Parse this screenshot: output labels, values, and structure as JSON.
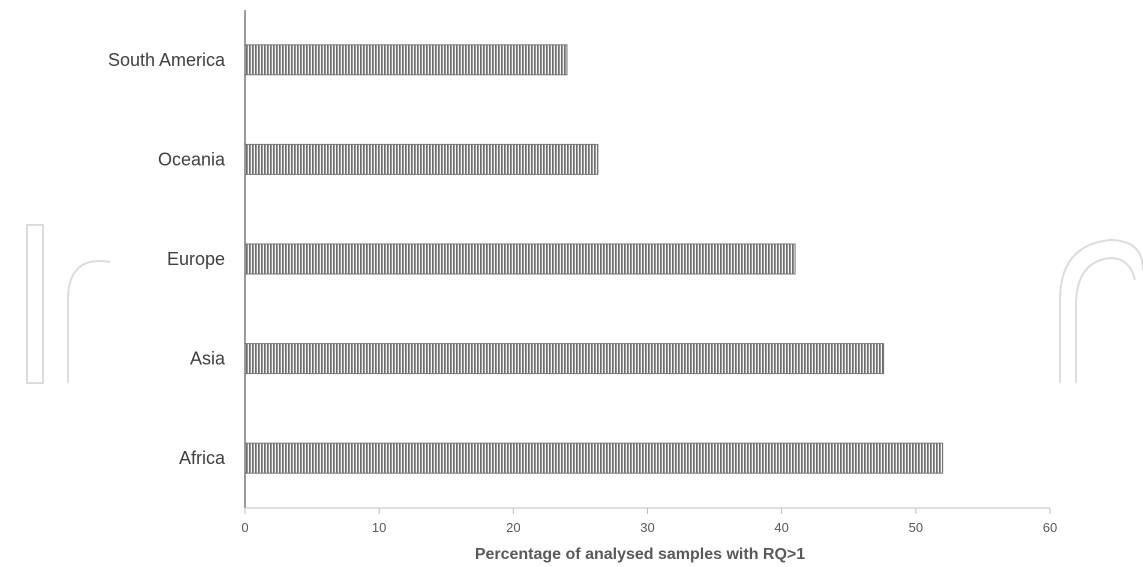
{
  "chart_data": {
    "type": "bar",
    "orientation": "horizontal",
    "categories": [
      "South America",
      "Oceania",
      "Europe",
      "Asia",
      "Africa"
    ],
    "values": [
      24,
      26.3,
      41,
      47.6,
      52
    ],
    "xlabel": "Percentage of analysed samples with RQ>1",
    "ylabel": "",
    "xlim": [
      0,
      60
    ],
    "xticks": [
      0,
      10,
      20,
      30,
      40,
      50,
      60
    ],
    "grid": false,
    "bar_color": "#777777"
  }
}
